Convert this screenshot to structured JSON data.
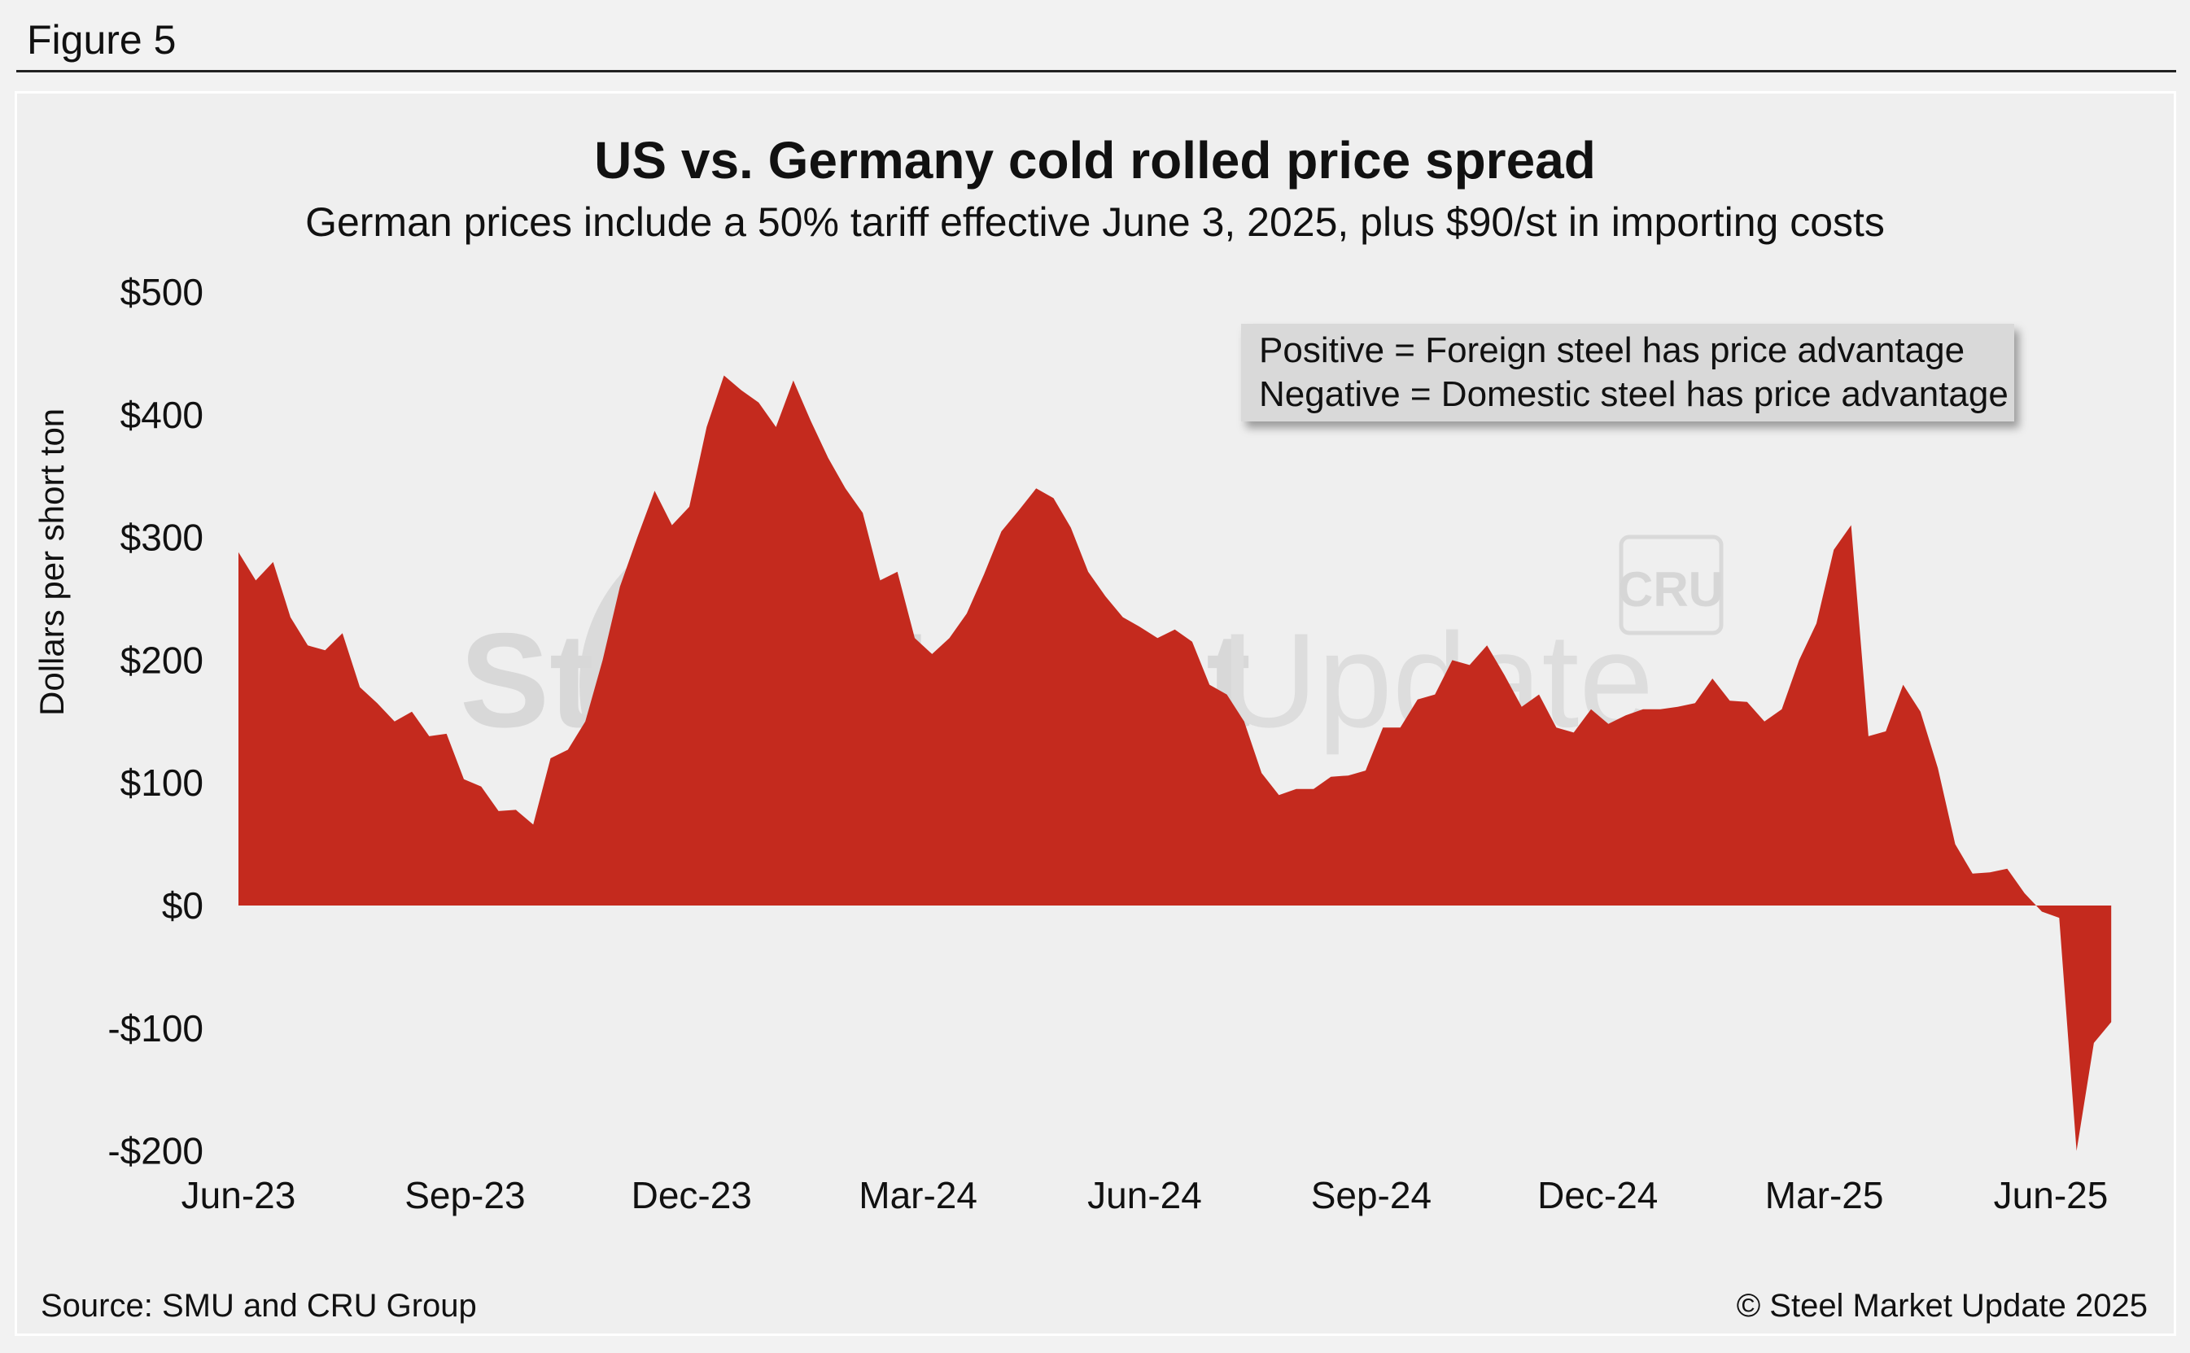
{
  "figure_label": "Figure 5",
  "footer": {
    "source": "Source: SMU and CRU Group",
    "copyright": "© Steel Market Update 2025"
  },
  "watermark": {
    "brand_bold": "Steel Market",
    "brand_light": "Update",
    "cru": "CRU"
  },
  "colors": {
    "area_fill": "#c42a1e",
    "background": "#efefef",
    "legend_box": "#d9d9d9"
  },
  "chart_data": {
    "type": "area",
    "title": "US vs. Germany cold rolled price spread",
    "subtitle": "German prices include a 50% tariff effective June 3, 2025, plus $90/st in importing costs",
    "xlabel": "",
    "ylabel": "Dollars per short ton",
    "ylim": [
      -200,
      500
    ],
    "yticks": [
      -200,
      -100,
      0,
      100,
      200,
      300,
      400,
      500
    ],
    "ytick_labels": [
      "-$200",
      "-$100",
      "$0",
      "$100",
      "$200",
      "$300",
      "$400",
      "$500"
    ],
    "xtick_labels": [
      "Jun-23",
      "Sep-23",
      "Dec-23",
      "Mar-24",
      "Jun-24",
      "Sep-24",
      "Dec-24",
      "Mar-25",
      "Jun-25"
    ],
    "grid": false,
    "legend": {
      "placement": "top-right",
      "lines": [
        "Positive = Foreign steel has price advantage",
        "Negative = Domestic steel has price advantage"
      ]
    },
    "series": [
      {
        "values": [
          288,
          265,
          280,
          235,
          212,
          208,
          222,
          178,
          165,
          150,
          158,
          138,
          140,
          103,
          97,
          77,
          78,
          66,
          120,
          127,
          150,
          200,
          260,
          300,
          338,
          310,
          325,
          390,
          432,
          420,
          410,
          390,
          428,
          395,
          365,
          340,
          320,
          265,
          272,
          218,
          205,
          218,
          238,
          270,
          305,
          322,
          340,
          332,
          308,
          272,
          252,
          235,
          227,
          218,
          225,
          215,
          180,
          172,
          150,
          108,
          90,
          95,
          95,
          105,
          106,
          110,
          145,
          145,
          168,
          172,
          200,
          196,
          212,
          188,
          162,
          172,
          145,
          141,
          160,
          148,
          155,
          160,
          160,
          162,
          165,
          185,
          167,
          166,
          150,
          160,
          200,
          230,
          290,
          310,
          138,
          142,
          180,
          158,
          112,
          50,
          26,
          27,
          30,
          10,
          -5,
          -10,
          -200,
          -112,
          -95
        ]
      }
    ]
  }
}
